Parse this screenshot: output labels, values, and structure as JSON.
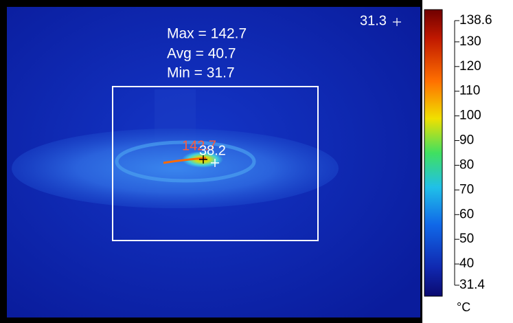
{
  "readout": {
    "max": "Max = 142.7",
    "avg": "Avg = 40.7",
    "min": "Min = 31.7"
  },
  "spot_label": "31.3",
  "hotspot_labels": {
    "max": "142.7",
    "center": "38.2"
  },
  "scale": {
    "range": [
      31.4,
      138.6
    ],
    "ticks": [
      138.6,
      130,
      120,
      110,
      100,
      90,
      80,
      70,
      60,
      50,
      40,
      31.4
    ],
    "unit": "°C"
  }
}
